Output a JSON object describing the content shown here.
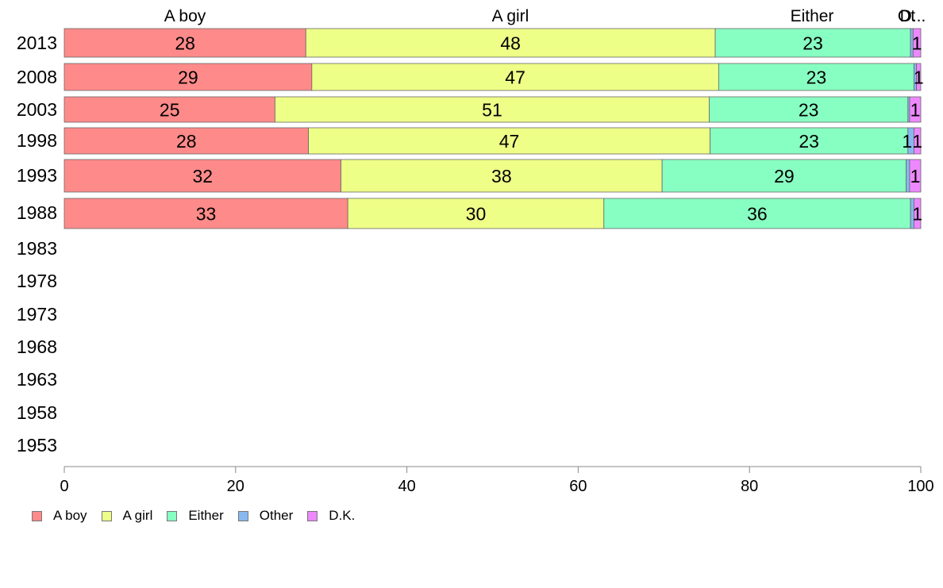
{
  "chart_data": {
    "type": "bar",
    "orientation": "horizontal",
    "stacked": true,
    "xlim": [
      0,
      100
    ],
    "x_ticks": [
      "0",
      "20",
      "40",
      "60",
      "80",
      "100"
    ],
    "categories": [
      "2013",
      "2008",
      "2003",
      "1998",
      "1993",
      "1988",
      "1983",
      "1978",
      "1973",
      "1968",
      "1963",
      "1958",
      "1953"
    ],
    "series": [
      {
        "name": "A boy",
        "color": "#ff8a8a",
        "values": [
          28.2,
          28.9,
          24.6,
          28.5,
          32.3,
          33.1,
          null,
          null,
          null,
          null,
          null,
          null,
          null
        ],
        "labels": [
          "28",
          "29",
          "25",
          "28",
          "32",
          "33",
          "",
          "",
          "",
          "",
          "",
          "",
          ""
        ]
      },
      {
        "name": "A girl",
        "color": "#eeff88",
        "values": [
          47.8,
          47.5,
          50.7,
          46.9,
          37.5,
          29.9,
          null,
          null,
          null,
          null,
          null,
          null,
          null
        ],
        "labels": [
          "48",
          "47",
          "51",
          "47",
          "38",
          "30",
          "",
          "",
          "",
          "",
          "",
          "",
          ""
        ]
      },
      {
        "name": "Either",
        "color": "#88ffc2",
        "values": [
          22.8,
          22.8,
          23.2,
          23.1,
          28.5,
          35.8,
          null,
          null,
          null,
          null,
          null,
          null,
          null
        ],
        "labels": [
          "23",
          "23",
          "23",
          "23",
          "29",
          "36",
          "",
          "",
          "",
          "",
          "",
          "",
          ""
        ]
      },
      {
        "name": "Other",
        "color": "#88b8f0",
        "values": [
          0.3,
          0.3,
          0.2,
          0.7,
          0.4,
          0.4,
          null,
          null,
          null,
          null,
          null,
          null,
          null
        ],
        "labels": [
          "",
          "",
          "",
          "1",
          "",
          "",
          "",
          "",
          "",
          "",
          "",
          "",
          ""
        ]
      },
      {
        "name": "D.K.",
        "color": "#ee88ff",
        "values": [
          0.9,
          0.5,
          1.3,
          0.8,
          1.3,
          0.8,
          null,
          null,
          null,
          null,
          null,
          null,
          null
        ],
        "labels": [
          "1",
          "1",
          "1",
          "1",
          "1",
          "1",
          "",
          "",
          "",
          "",
          "",
          "",
          ""
        ]
      }
    ],
    "top_labels": [
      "A boy",
      "A girl",
      "Either",
      "Ot",
      "D..."
    ],
    "legend": {
      "position": "bottom-left",
      "entries": [
        "A boy",
        "A girl",
        "Either",
        "Other",
        "D.K."
      ]
    },
    "grid": false
  }
}
